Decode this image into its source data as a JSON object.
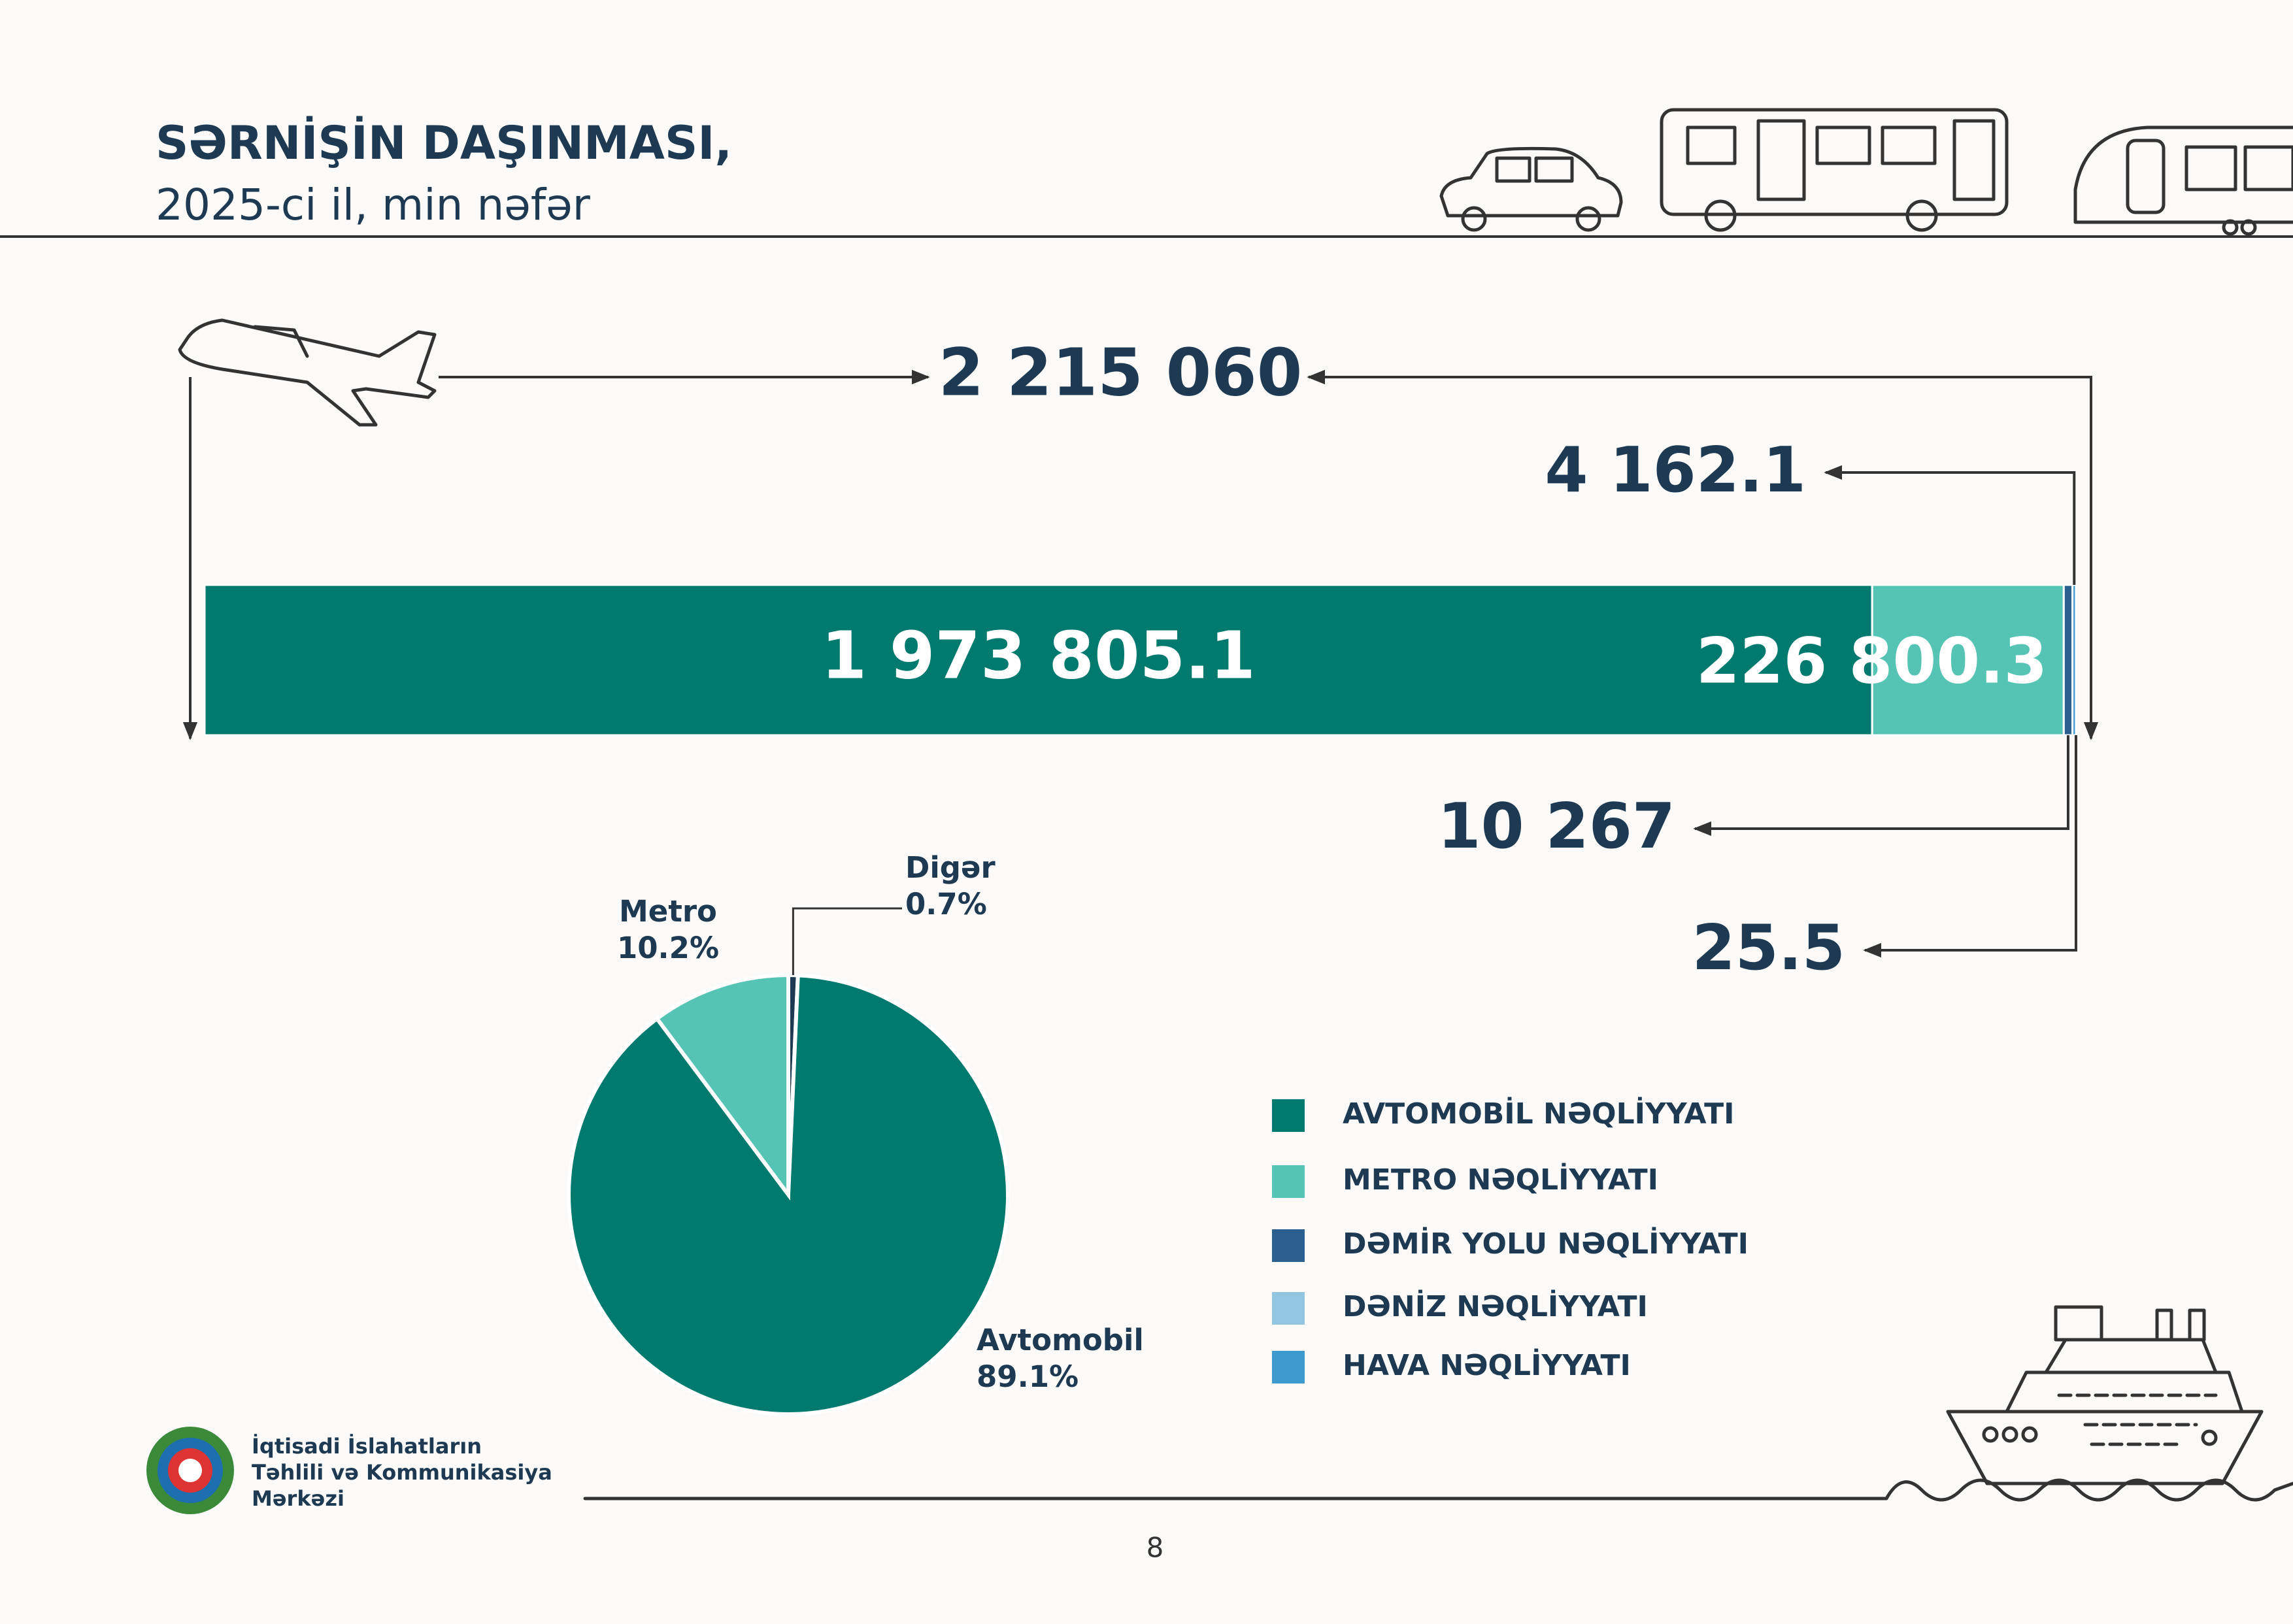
{
  "header": {
    "title": "SƏRNİŞİN DAŞINMASI,",
    "subtitle": "2025-ci il, min nəfər"
  },
  "chart_data": [
    {
      "type": "stacked-bar",
      "total": {
        "value": 2215060,
        "label": "2 215 060"
      },
      "series": [
        {
          "name": "AVTOMOBİL NƏQLİYYATI",
          "color": "#007a6e",
          "values": [
            1973805.1
          ],
          "value_labels": [
            "1 973 805.1"
          ]
        },
        {
          "name": "METRO NƏQLİYYATI",
          "color": "#55c4b4",
          "values": [
            226800.3
          ],
          "value_labels": [
            "226 800.3"
          ]
        },
        {
          "name": "DƏMİR YOLU NƏQLİYYATI",
          "color": "#2a5f8f",
          "values": [
            10267
          ],
          "value_labels": [
            "10 267"
          ]
        },
        {
          "name": "DƏNİZ NƏQLİYYATI",
          "color": "#92c5e0",
          "values": [
            25.5
          ],
          "value_labels": [
            "25.5"
          ]
        },
        {
          "name": "HAVA NƏQLİYYATI",
          "color": "#3f9ad0",
          "values": [
            4162.1
          ],
          "value_labels": [
            "4 162.1"
          ]
        }
      ]
    },
    {
      "type": "pie",
      "categories": [
        "Avtomobil",
        "Metro",
        "Digər"
      ],
      "values": [
        89.1,
        10.2,
        0.7
      ],
      "value_labels": [
        "89.1%",
        "10.2%",
        "0.7%"
      ],
      "colors": [
        "#007a6e",
        "#55c4b4",
        "#1e3a52"
      ]
    }
  ],
  "footer": {
    "organization": [
      "İqtisadi İslahatların",
      "Təhlili və Kommunikasiya",
      "Mərkəzi"
    ],
    "page": "8"
  }
}
